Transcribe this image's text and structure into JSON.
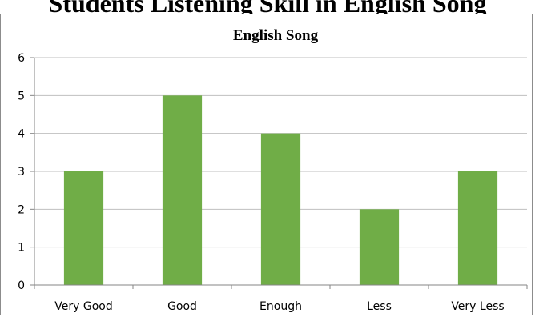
{
  "page": {
    "heading": "Students Listening Skill in English Song"
  },
  "chart_data": {
    "type": "bar",
    "title": "English Song",
    "xlabel": "",
    "ylabel": "",
    "categories": [
      "Very Good",
      "Good",
      "Enough",
      "Less",
      "Very Less"
    ],
    "values": [
      3,
      5,
      4,
      2,
      3
    ],
    "ylim": [
      0,
      6
    ],
    "yticks": [
      0,
      1,
      2,
      3,
      4,
      5,
      6
    ],
    "grid": true,
    "legend": "none",
    "colors": {
      "bar": "#70ad47",
      "grid": "#bfbfbf",
      "axis": "#868686"
    }
  }
}
